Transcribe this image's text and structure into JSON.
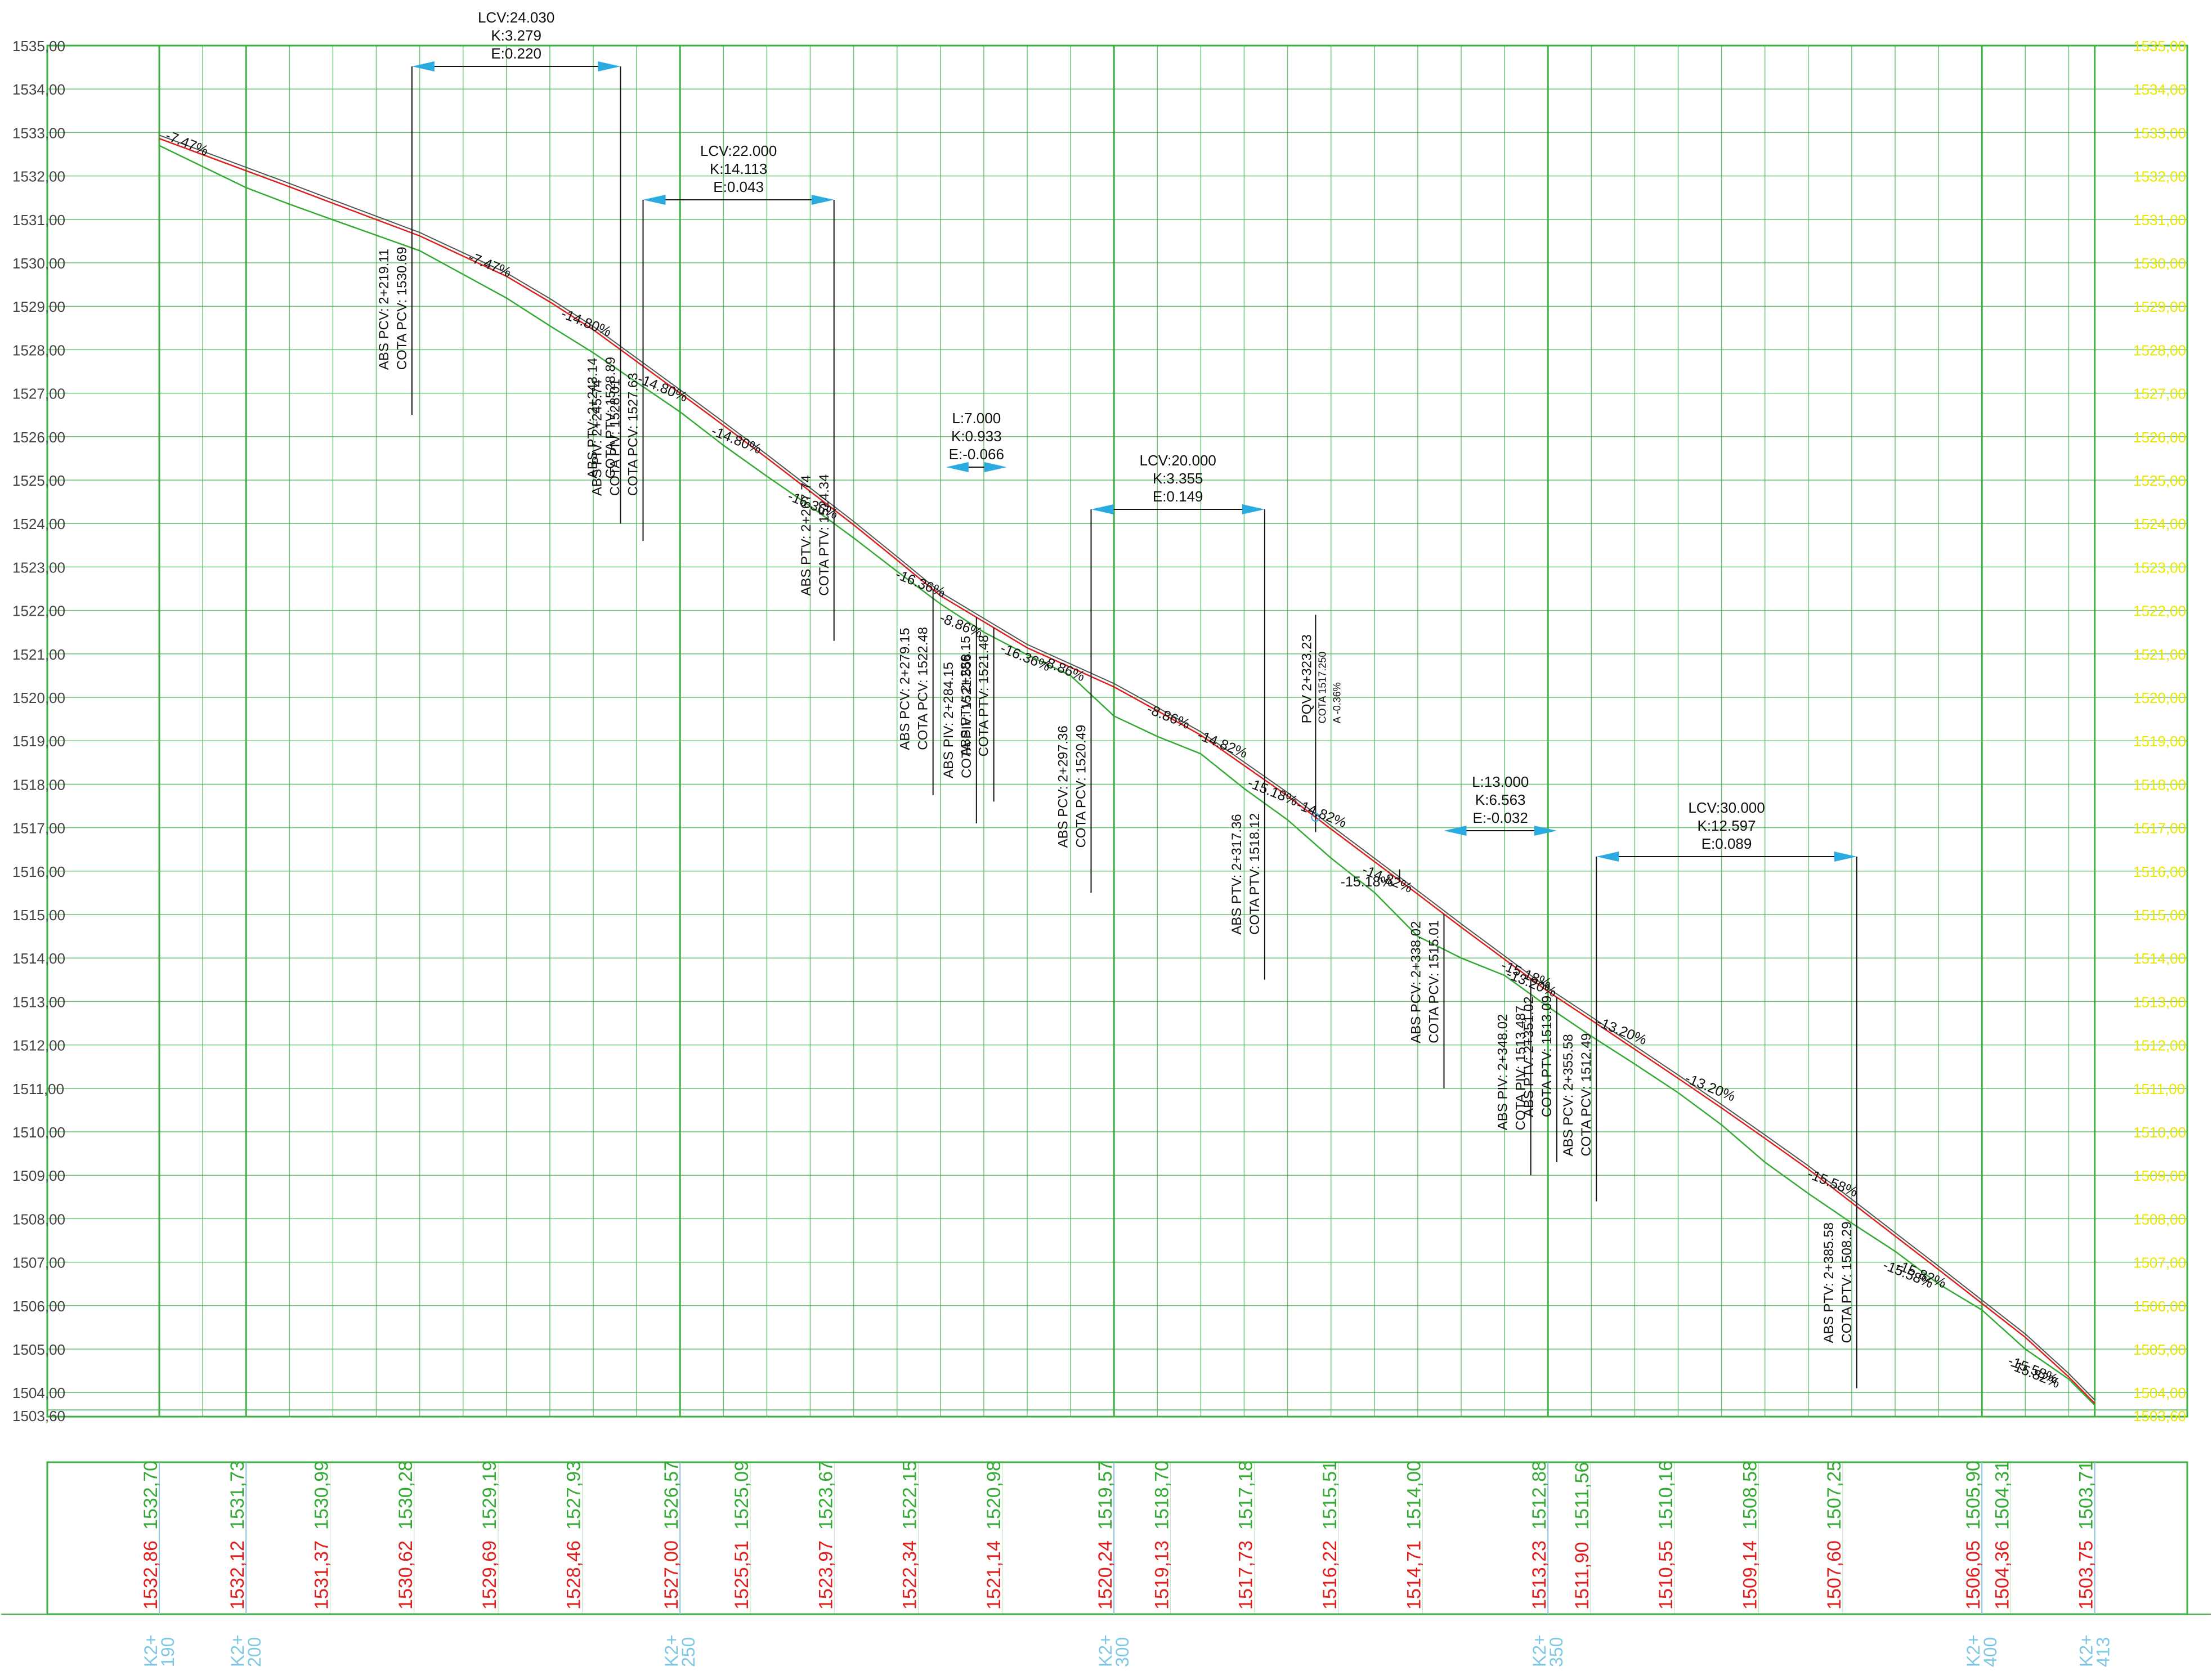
{
  "colors": {
    "grid": "#3cb043",
    "left_label": "#444444",
    "right_label": "#e8e800",
    "design": "#e01e1e",
    "terrain": "#33aa33",
    "overlay": "#555555",
    "annotation": "#111111",
    "arrow": "#29abe2",
    "cota_green": "#33aa33",
    "cota_red": "#e01e1e",
    "station": "#7ec8e3",
    "vline": "#90c0e0"
  },
  "elevation_labels": [
    "1535,00",
    "1534,00",
    "1533,00",
    "1532,00",
    "1531,00",
    "1530,00",
    "1529,00",
    "1528,00",
    "1527,00",
    "1526,00",
    "1525,00",
    "1524,00",
    "1523,00",
    "1522,00",
    "1521,00",
    "1520,00",
    "1519,00",
    "1518,00",
    "1517,00",
    "1516,00",
    "1515,00",
    "1514,00",
    "1513,00",
    "1512,00",
    "1511,00",
    "1510,00",
    "1509,00",
    "1508,00",
    "1507,00",
    "1506,00",
    "1505,00",
    "1504,00"
  ],
  "datum_label": "1503,60",
  "curves": [
    {
      "lines": [
        "LCV:24.030",
        "K:3.279",
        "E:0.220"
      ],
      "from": 2219.11,
      "to": 2243.14
    },
    {
      "lines": [
        "LCV:22.000",
        "K:14.113",
        "E:0.043"
      ],
      "from": 2245.74,
      "to": 2267.74
    },
    {
      "lines": [
        "L:7.000",
        "K:0.933",
        "E:-0.066"
      ],
      "from": 2280.65,
      "to": 2287.65
    },
    {
      "lines": [
        "LCV:20.000",
        "K:3.355",
        "E:0.149"
      ],
      "from": 2297.36,
      "to": 2317.36
    },
    {
      "lines": [
        "L:13.000",
        "K:6.563",
        "E:-0.032"
      ],
      "from": 2338.02,
      "to": 2351.02
    },
    {
      "lines": [
        "LCV:30.000",
        "K:12.597",
        "E:0.089"
      ],
      "from": 2355.58,
      "to": 2385.58
    }
  ],
  "grade_labels": [
    {
      "text": "-7.47%",
      "st": 2190.6,
      "el": 1532.85
    },
    {
      "text": "-7.47%",
      "st": 2225.5,
      "el": 1530.05
    },
    {
      "text": "-14.80%",
      "st": 2236.2,
      "el": 1528.75
    },
    {
      "text": "-14.80%",
      "st": 2245.0,
      "el": 1527.25
    },
    {
      "text": "-14.80%",
      "st": 2253.5,
      "el": 1526.05
    },
    {
      "text": "-16.36%",
      "st": 2262.3,
      "el": 1524.55
    },
    {
      "text": "-16.36%",
      "st": 2274.7,
      "el": 1522.75
    },
    {
      "text": "-8.86%",
      "st": 2279.8,
      "el": 1521.75
    },
    {
      "text": "-16.36%",
      "st": 2286.8,
      "el": 1521.05
    },
    {
      "text": "-8.86%",
      "st": 2291.6,
      "el": 1520.75
    },
    {
      "text": "-8.86%",
      "st": 2303.7,
      "el": 1519.65
    },
    {
      "text": "-14.82%",
      "st": 2309.5,
      "el": 1519.05
    },
    {
      "text": "-15.18%",
      "st": 2315.3,
      "el": 1517.95
    },
    {
      "text": "-14.82%",
      "st": 2320.9,
      "el": 1517.45
    },
    {
      "text": "-14.82%",
      "st": 2328.5,
      "el": 1515.95
    },
    {
      "text": "-15.18%",
      "st": 2344.5,
      "el": 1513.75
    },
    {
      "text": "-13.20%",
      "st": 2345.1,
      "el": 1513.55
    },
    {
      "text": "-13.20%",
      "st": 2355.5,
      "el": 1512.45
    },
    {
      "text": "-13.20%",
      "st": 2365.7,
      "el": 1511.15
    },
    {
      "text": "-15.58%",
      "st": 2379.8,
      "el": 1508.95
    },
    {
      "text": "-15.58%",
      "st": 2388.5,
      "el": 1506.85
    },
    {
      "text": "-15.82%",
      "st": 2390.0,
      "el": 1506.85
    },
    {
      "text": "-15.58%",
      "st": 2402.9,
      "el": 1504.65
    },
    {
      "text": "-15.82%",
      "st": 2403.1,
      "el": 1504.55
    }
  ],
  "flat_label": {
    "text": "-15.18%",
    "st": 2326.1,
    "el": 1515.65
  },
  "vertical_annotations": [
    {
      "st": 2219.11,
      "lines": [
        "ABS PCV: 2+219.11",
        "COTA PCV: 1530.69"
      ],
      "anchor": 1526.5
    },
    {
      "st": 2243.14,
      "lines": [
        "ABS PTV: 2+243.14",
        "COTA PTV: 1528.89"
      ],
      "anchor": 1524.0
    },
    {
      "st": 2245.74,
      "lines": [
        "ABS PIV: 2+245.74",
        "COTA PIV: 1528.01",
        "COTA PCV: 1527.63"
      ],
      "anchor": 1523.6
    },
    {
      "st": 2267.74,
      "lines": [
        "ABS PTV: 2+267.74",
        "COTA PTV: 1524.34"
      ],
      "anchor": 1521.3
    },
    {
      "st": 2279.15,
      "lines": [
        "ABS PCV: 2+279.15",
        "COTA PCV: 1522.48"
      ],
      "anchor": 1517.75
    },
    {
      "st": 2284.15,
      "lines": [
        "ABS PIV: 2+284.15",
        "COTA PIV: 1521.558"
      ],
      "anchor": 1517.1
    },
    {
      "st": 2286.15,
      "lines": [
        "ABS PTV: 2+286.15",
        "COTA PTV: 1521.48"
      ],
      "anchor": 1517.6
    },
    {
      "st": 2297.36,
      "lines": [
        "ABS PCV: 2+297.36",
        "COTA PCV: 1520.49"
      ],
      "anchor": 1515.5
    },
    {
      "st": 2317.36,
      "lines": [
        "ABS PTV: 2+317.36",
        "COTA PTV: 1518.12"
      ],
      "anchor": 1513.5
    },
    {
      "st": 2338.02,
      "lines": [
        "ABS PCV: 2+338.02",
        "COTA PCV: 1515.01"
      ],
      "anchor": 1511.0
    },
    {
      "st": 2348.02,
      "lines": [
        "ABS PIV: 2+348.02",
        "COTA PIV: 1513.487"
      ],
      "anchor": 1509.0
    },
    {
      "st": 2351.02,
      "lines": [
        "ABS PTV: 2+351.02",
        "COTA PTV: 1513.09"
      ],
      "anchor": 1509.3
    },
    {
      "st": 2355.58,
      "lines": [
        "ABS PCV: 2+355.58",
        "COTA PCV: 1512.49"
      ],
      "anchor": 1508.4
    },
    {
      "st": 2385.58,
      "lines": [
        "ABS PTV: 2+385.58",
        "COTA PTV: 1508.29"
      ],
      "anchor": 1504.1
    }
  ],
  "pqv": {
    "st": 2323.23,
    "lines": [
      "PQV 2+323.23",
      "COTA 1517.250",
      "A -0.36%"
    ],
    "anchor": 1519.4
  },
  "chart_data": {
    "type": "line",
    "title": "",
    "xlabel": "",
    "ylabel": "",
    "xlim": [
      2190,
      2413
    ],
    "ylim": [
      1503.6,
      1535.0
    ],
    "x": [
      2190,
      2200,
      2205,
      2210,
      2220,
      2230,
      2235,
      2240,
      2250,
      2255,
      2260,
      2265,
      2270,
      2275,
      2280,
      2285,
      2290,
      2295,
      2300,
      2305,
      2310,
      2315,
      2320,
      2325,
      2330,
      2335,
      2340,
      2345,
      2350,
      2355,
      2360,
      2365,
      2370,
      2375,
      2380,
      2385,
      2390,
      2395,
      2400,
      2405,
      2410,
      2413
    ],
    "series": [
      {
        "name": "",
        "values": [
          1532.86,
          1532.12,
          1531.75,
          1531.37,
          1530.62,
          1529.69,
          1529.1,
          1528.46,
          1527.0,
          1526.26,
          1525.51,
          1524.74,
          1523.97,
          1523.16,
          1522.34,
          1521.74,
          1521.14,
          1520.69,
          1520.24,
          1519.69,
          1519.13,
          1518.43,
          1517.73,
          1516.97,
          1516.22,
          1515.47,
          1514.71,
          1513.97,
          1513.23,
          1512.57,
          1511.9,
          1511.23,
          1510.55,
          1509.85,
          1509.14,
          1508.37,
          1507.6,
          1506.83,
          1506.05,
          1505.27,
          1504.36,
          1503.75
        ]
      },
      {
        "name": "",
        "values": [
          1532.7,
          1531.73,
          1531.35,
          1530.99,
          1530.28,
          1529.19,
          1528.55,
          1527.93,
          1526.57,
          1525.8,
          1525.09,
          1524.4,
          1523.67,
          1522.9,
          1522.15,
          1521.5,
          1520.98,
          1520.5,
          1519.57,
          1519.1,
          1518.7,
          1517.9,
          1517.18,
          1516.3,
          1515.51,
          1514.5,
          1514.0,
          1513.6,
          1512.88,
          1512.2,
          1511.56,
          1510.9,
          1510.16,
          1509.3,
          1508.58,
          1507.9,
          1507.25,
          1506.5,
          1505.9,
          1505.0,
          1504.31,
          1503.71
        ]
      }
    ]
  },
  "table": {
    "columns": [
      {
        "red": "1532,86",
        "green": "1532,70",
        "station": [
          "K2+",
          "190"
        ]
      },
      {
        "red": "1532,12",
        "green": "1531,73",
        "station": [
          "K2+",
          "200"
        ]
      },
      {
        "red": "1531,37",
        "green": "1530,99",
        "station": null
      },
      {
        "red": "1530,62",
        "green": "1530,28",
        "station": null
      },
      {
        "red": "1529,69",
        "green": "1529,19",
        "station": null
      },
      {
        "red": "1528,46",
        "green": "1527,93",
        "station": null
      },
      {
        "red": "1527,00",
        "green": "1526,57",
        "station": [
          "K2+",
          "250"
        ]
      },
      {
        "red": "1525,51",
        "green": "1525,09",
        "station": null
      },
      {
        "red": "1523,97",
        "green": "1523,67",
        "station": null
      },
      {
        "red": "1522,34",
        "green": "1522,15",
        "station": null
      },
      {
        "red": "1521,14",
        "green": "1520,98",
        "station": null
      },
      {
        "red": "1520,24",
        "green": "1519,57",
        "station": [
          "K2+",
          "300"
        ]
      },
      {
        "red": "1519,13",
        "green": "1518,70",
        "station": null
      },
      {
        "red": "1517,73",
        "green": "1517,18",
        "station": null
      },
      {
        "red": "1516,22",
        "green": "1515,51",
        "station": null
      },
      {
        "red": "1514,71",
        "green": "1514,00",
        "station": null
      },
      {
        "red": "1513,23",
        "green": "1512,88",
        "station": [
          "K2+",
          "350"
        ]
      },
      {
        "red": "1511,90",
        "green": "1511,56",
        "station": null
      },
      {
        "red": "1510,55",
        "green": "1510,16",
        "station": null
      },
      {
        "red": "1509,14",
        "green": "1508,58",
        "station": null
      },
      {
        "red": "1507,60",
        "green": "1507,25",
        "station": null
      },
      {
        "red": "1506,05",
        "green": "1505,90",
        "station": [
          "K2+",
          "400"
        ]
      },
      {
        "red": "1504,36",
        "green": "1504,31",
        "station": null
      },
      {
        "red": "1503,75",
        "green": "1503,71",
        "station": [
          "K2+",
          "413"
        ]
      }
    ]
  }
}
